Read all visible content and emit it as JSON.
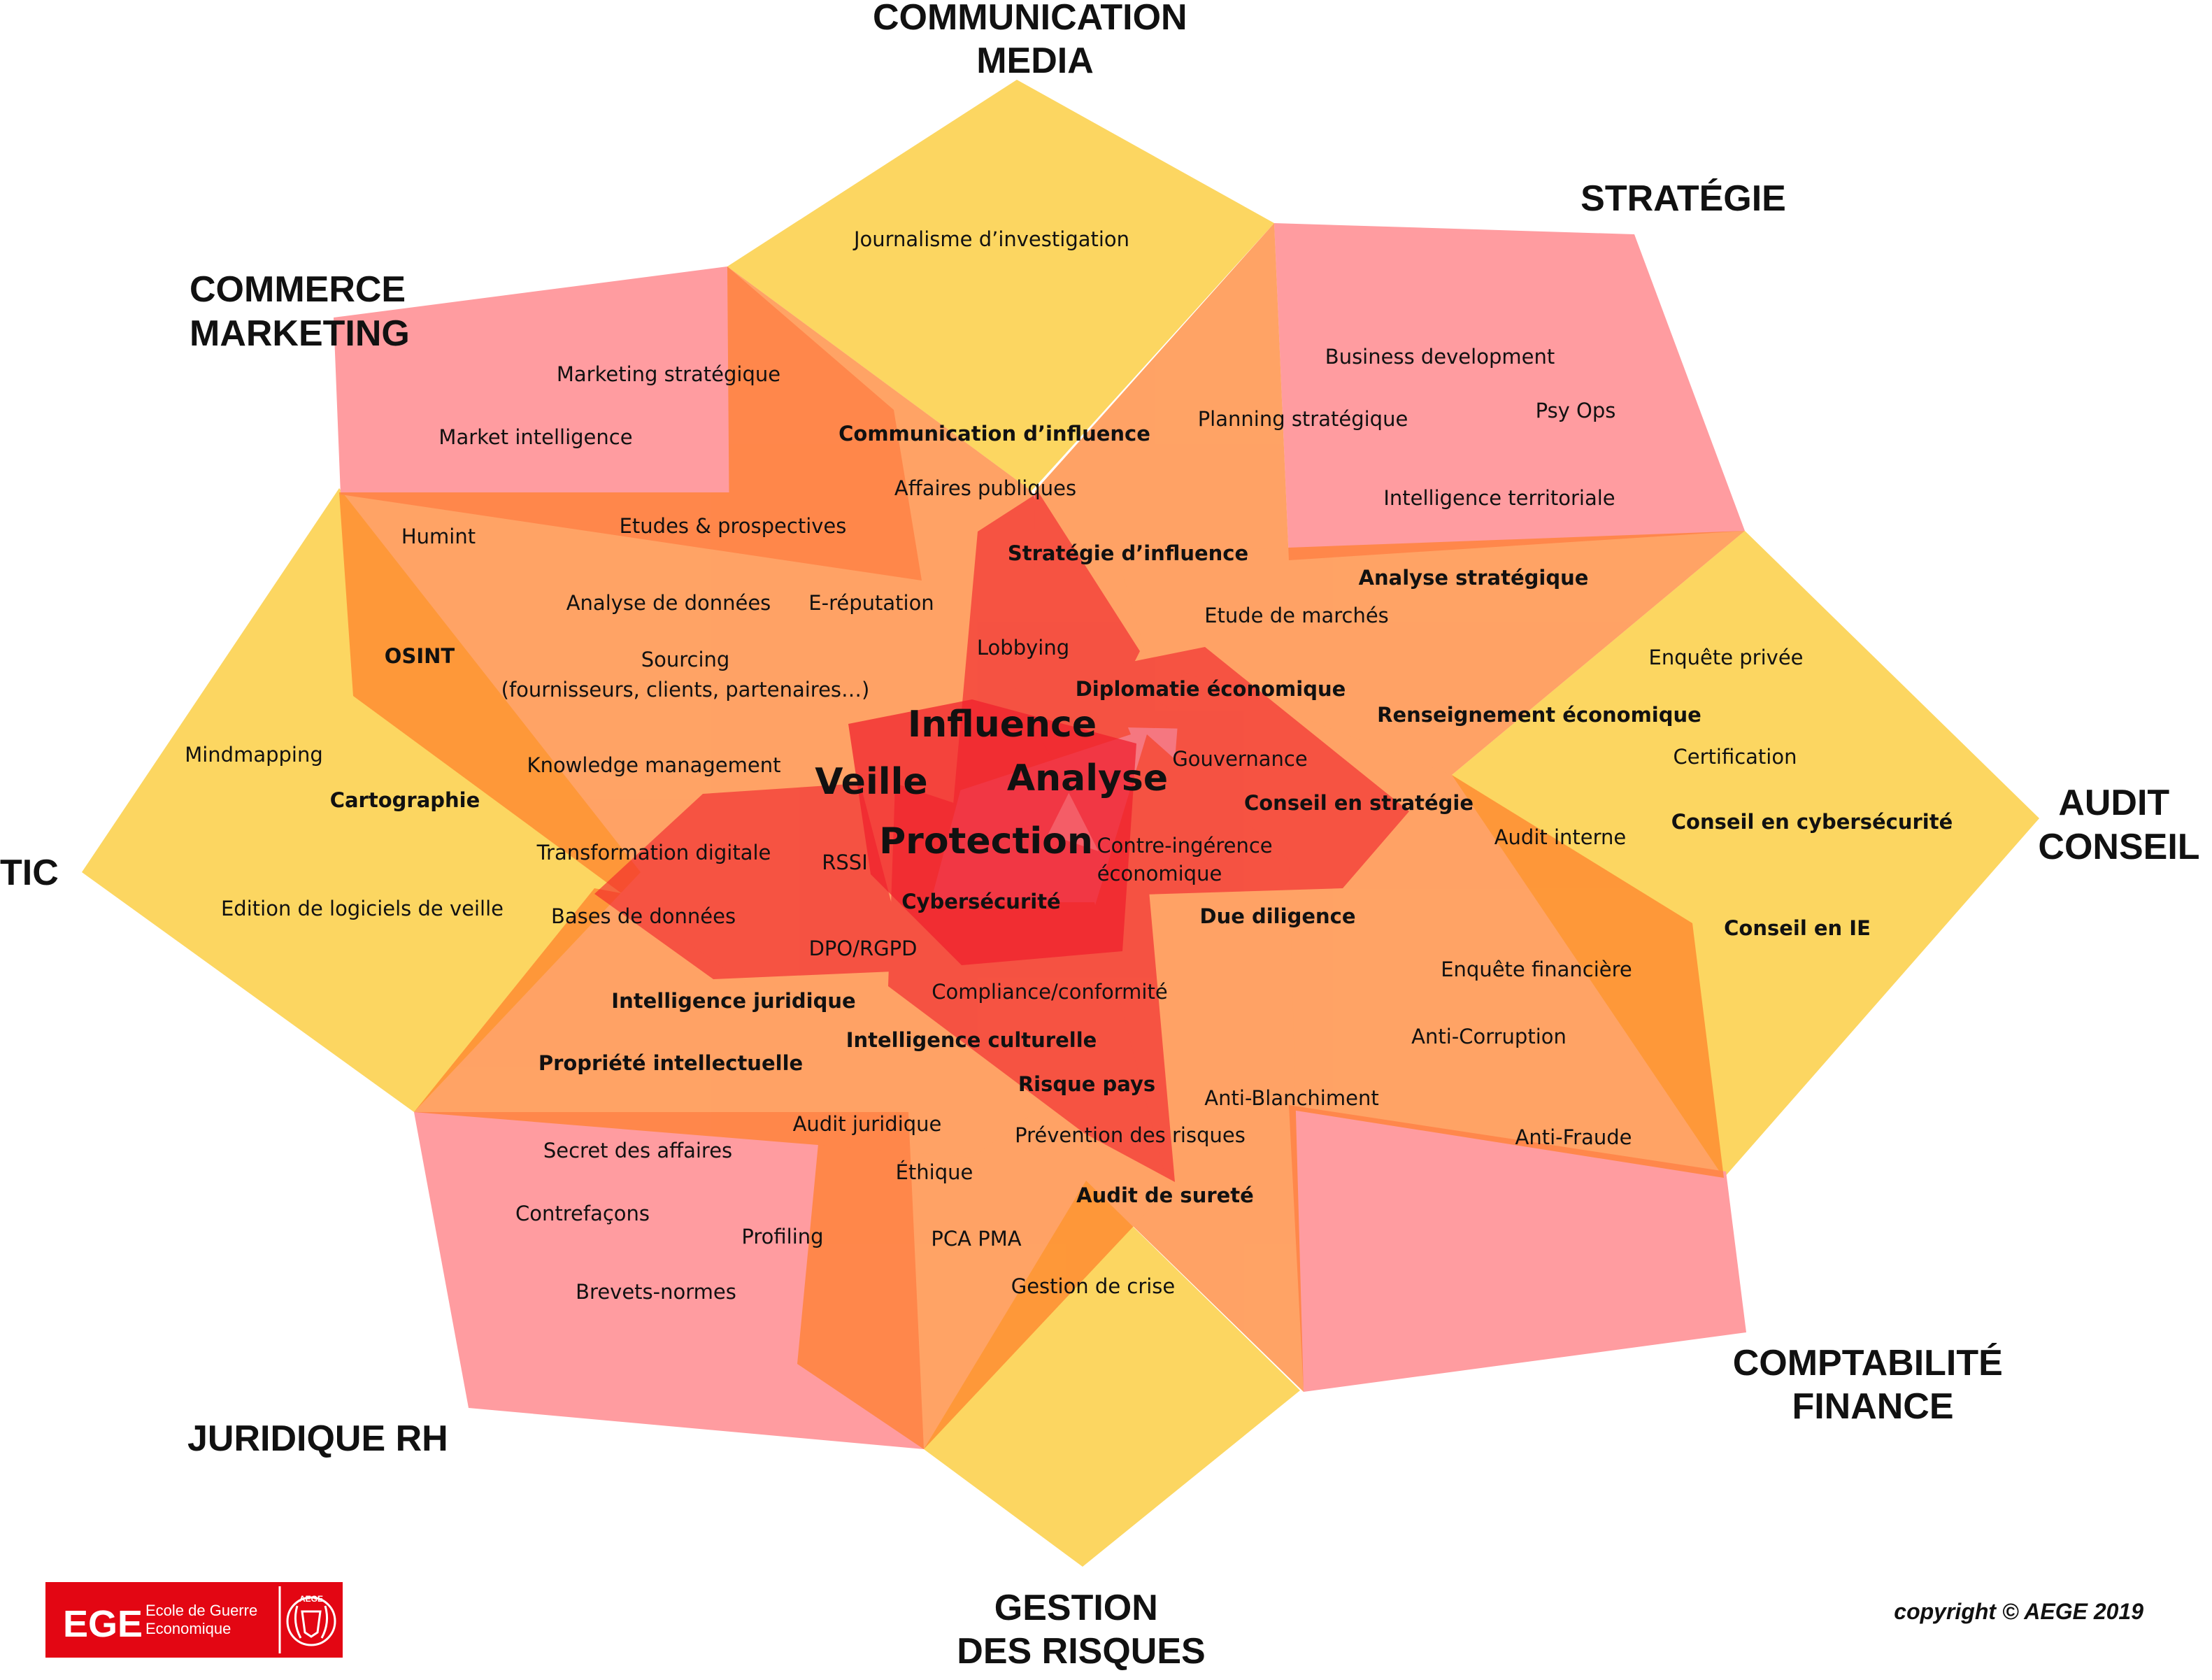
{
  "colors": {
    "yellow": "#FCD661",
    "pink": "#FF9CA0",
    "orange": "#FF7F2A",
    "red": "#F01E2C",
    "logo_red": "#E30613"
  },
  "domains": [
    {
      "id": "communication",
      "lines": [
        "COMMUNICATION",
        "MEDIA"
      ]
    },
    {
      "id": "strategie",
      "lines": [
        "STRATÉGIE"
      ]
    },
    {
      "id": "audit",
      "lines": [
        "AUDIT",
        "CONSEIL"
      ]
    },
    {
      "id": "comptabilite",
      "lines": [
        "COMPTABILITÉ",
        "FINANCE"
      ]
    },
    {
      "id": "gestion",
      "lines": [
        "GESTION",
        "DES RISQUES"
      ]
    },
    {
      "id": "juridique",
      "lines": [
        "JURIDIQUE RH"
      ]
    },
    {
      "id": "tic",
      "lines": [
        "TIC"
      ]
    },
    {
      "id": "commerce",
      "lines": [
        "COMMERCE",
        "MARKETING"
      ]
    }
  ],
  "core": [
    "Influence",
    "Veille",
    "Analyse",
    "Protection"
  ],
  "skills": [
    "Journalisme d’investigation",
    "Marketing stratégique",
    "Market intelligence",
    "Communication d’influence",
    "Affaires publiques",
    "Business development",
    "Psy Ops",
    "Planning stratégique",
    "Intelligence territoriale",
    "Humint",
    "Etudes & prospectives",
    "Stratégie d’influence",
    "Analyse stratégique",
    "Analyse de données",
    "E-réputation",
    "Etude de marchés",
    "OSINT",
    "Sourcing",
    "(fournisseurs, clients, partenaires…)",
    "Lobbying",
    "Enquête privée",
    "Diplomatie économique",
    "Renseignement économique",
    "Mindmapping",
    "Certification",
    "Cartographie",
    "Knowledge management",
    "Gouvernance",
    "Conseil en stratégie",
    "Conseil en cybersécurité",
    "Audit interne",
    "Transformation digitale",
    "RSSI",
    "Contre-ingérence",
    "économique",
    "Edition de logiciels de veille",
    "Cybersécurité",
    "Bases de données",
    "Due diligence",
    "Conseil en IE",
    "DPO/RGPD",
    "Enquête financière",
    "Compliance/conformité",
    "Intelligence juridique",
    "Anti-Corruption",
    "Intelligence culturelle",
    "Propriété intellectuelle",
    "Risque pays",
    "Anti-Blanchiment",
    "Audit juridique",
    "Prévention des risques",
    "Secret des affaires",
    "Anti-Fraude",
    "Éthique",
    "Audit de sureté",
    "Contrefaçons",
    "Profiling",
    "PCA PMA",
    "Brevets-normes",
    "Gestion de crise"
  ],
  "logo": {
    "acronym": "EGE",
    "line1": "Ecole de Guerre",
    "line2": "Economique",
    "badge": "AEGE"
  },
  "copyright": "copyright © AEGE 2019"
}
